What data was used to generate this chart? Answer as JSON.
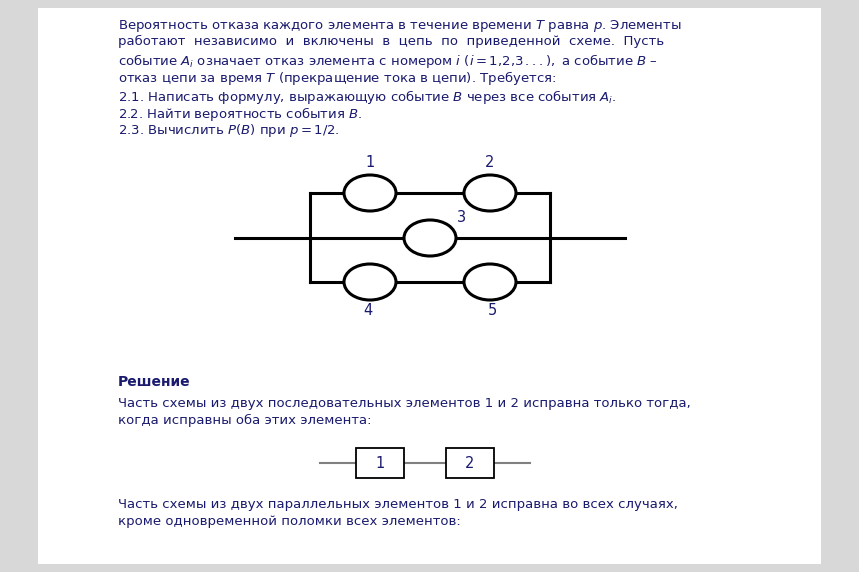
{
  "bg_color": "#d8d8d8",
  "page_bg": "#ffffff",
  "text_color": "#1a1a6e",
  "title_color": "#1a1a6e",
  "circuit_color": "#000000",
  "wire_color_small": "#888888",
  "line1": "Вероятность отказа каждого элемента в течение времени $T$ равна $p$. Элементы",
  "line2": "работают  независимо  и  включены  в  цепь  по  приведенной  схеме.  Пусть",
  "line3": "событие $A_i$ означает отказ элемента с номером $i$ $(i = 1{,}2{,}3\\,...),$ а событие $B$ –",
  "line4": "отказ цепи за время $T$ (прекращение тока в цепи). Требуется:",
  "item1": "2.1. Написать формулу, выражающую событие $B$ через все события $A_i$.",
  "item2": "2.2. Найти вероятность события $B$.",
  "item3": "2.3. Вычислить $P(B)$ при $p = 1/2$.",
  "sol_title": "Решение",
  "sol1a": "Часть схемы из двух последовательных элементов 1 и 2 исправна только тогда,",
  "sol1b": "когда исправны оба этих элемента:",
  "sol2a": "Часть схемы из двух параллельных элементов 1 и 2 исправна во всех случаях,",
  "sol2b": "кроме одновременной поломки всех элементов:"
}
